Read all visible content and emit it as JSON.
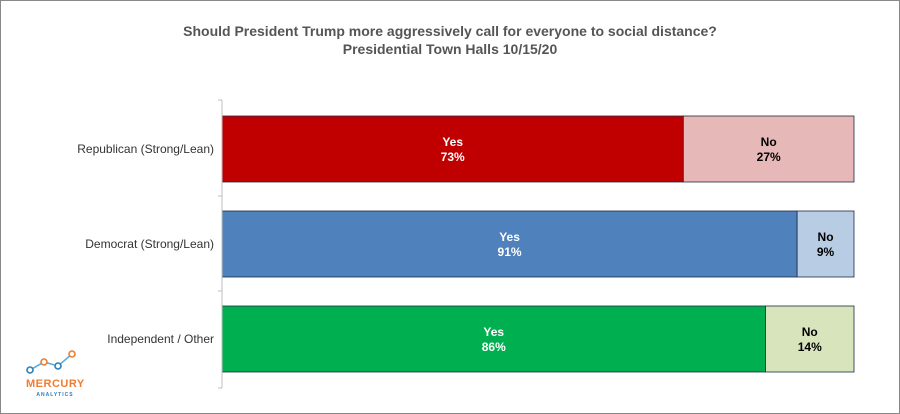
{
  "chart_data": {
    "type": "bar",
    "orientation": "horizontal",
    "stacked": true,
    "title": "Should President Trump more  aggressively call for everyone to social distance?",
    "subtitle": "Presidential Town Halls 10/15/20",
    "categories": [
      "Republican (Strong/Lean)",
      "Democrat (Strong/Lean)",
      "Independent / Other"
    ],
    "xlim": [
      0,
      100
    ],
    "grid": false,
    "legend": "none",
    "series": [
      {
        "name": "Yes",
        "values": [
          73,
          91,
          86
        ],
        "value_labels": [
          "73%",
          "91%",
          "86%"
        ],
        "colors": [
          "#c00000",
          "#4f81bd",
          "#00b050"
        ],
        "label_color": "#ffffff"
      },
      {
        "name": "No",
        "values": [
          27,
          9,
          14
        ],
        "value_labels": [
          "27%",
          "9%",
          "14%"
        ],
        "colors": [
          "#e6b8b7",
          "#b8cce4",
          "#d8e4bc"
        ],
        "label_color": "#000000"
      }
    ]
  },
  "logo": {
    "name": "MERCURY",
    "tagline": "ANALYTICS",
    "colors": [
      "#f07c2f",
      "#2d7fb8",
      "#5aaee0"
    ]
  }
}
